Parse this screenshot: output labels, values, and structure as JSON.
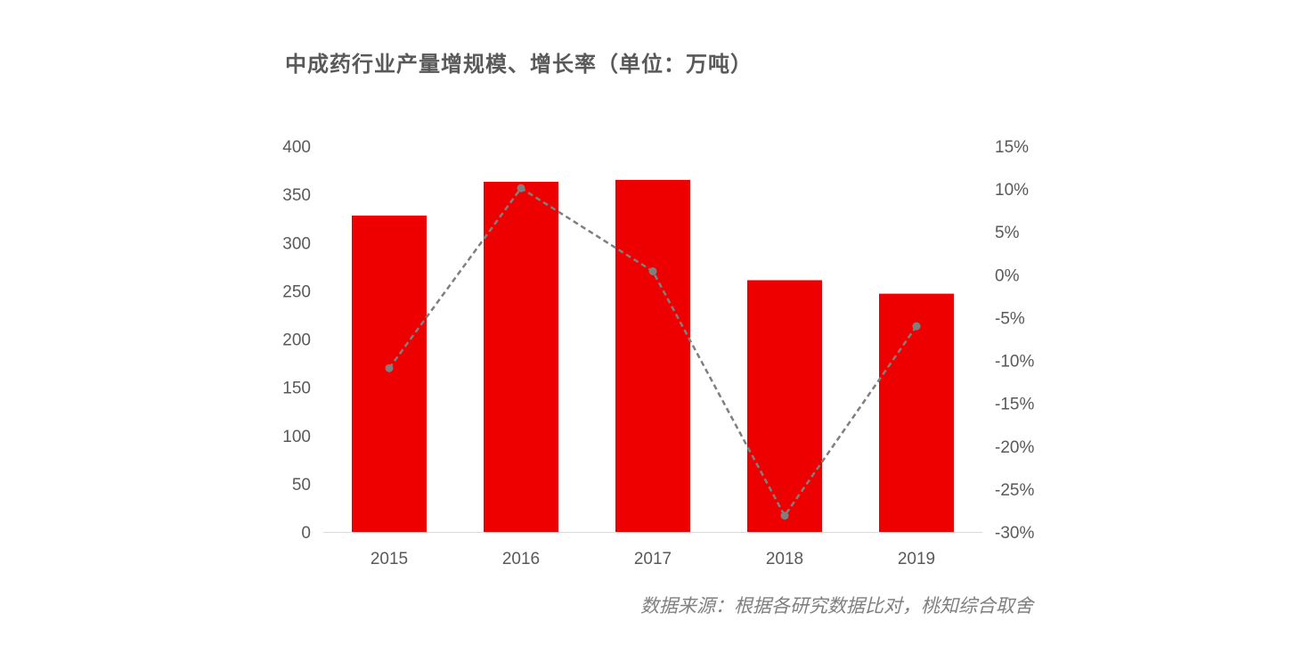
{
  "chart_data": {
    "type": "bar+line",
    "title": "中成药行业产量增规模、增长率（单位：万吨）",
    "categories": [
      "2015",
      "2016",
      "2017",
      "2018",
      "2019"
    ],
    "series": [
      {
        "name": "产量",
        "type": "bar",
        "axis": "left",
        "color": "#ee0000",
        "values": [
          328,
          363,
          365,
          261,
          247
        ]
      },
      {
        "name": "增长率",
        "type": "line",
        "axis": "right",
        "color": "#7f7f7f",
        "dashed": true,
        "values": [
          -10.9,
          10.1,
          0.4,
          -28.1,
          -6.0
        ]
      }
    ],
    "left_axis": {
      "ylim": [
        0,
        400
      ],
      "ticks": [
        "0",
        "50",
        "100",
        "150",
        "200",
        "250",
        "300",
        "350",
        "400"
      ]
    },
    "right_axis": {
      "ylim": [
        -30,
        15
      ],
      "ticks": [
        "-30%",
        "-25%",
        "-20%",
        "-15%",
        "-10%",
        "-5%",
        "0%",
        "5%",
        "10%",
        "15%"
      ]
    },
    "grid": false,
    "source": "数据来源：根据各研究数据比对，桃知综合取舍"
  }
}
